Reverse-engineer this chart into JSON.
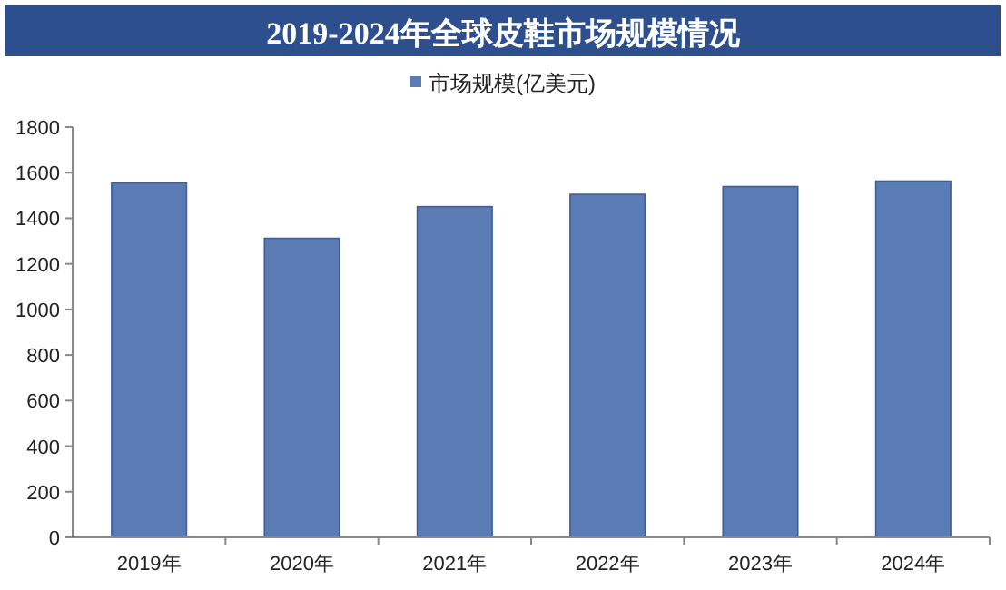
{
  "chart_data": {
    "type": "bar",
    "title": "2019-2024年全球皮鞋市场规模情况",
    "categories": [
      "2019年",
      "2020年",
      "2021年",
      "2022年",
      "2023年",
      "2024年"
    ],
    "series": [
      {
        "name": "市场规模(亿美元)",
        "color": "#5b7bb5",
        "values": [
          1555,
          1312,
          1451,
          1505,
          1539,
          1563
        ]
      }
    ],
    "ylim": [
      0,
      1800
    ],
    "yticks": [
      0,
      200,
      400,
      600,
      800,
      1000,
      1200,
      1400,
      1600,
      1800
    ],
    "legend": "top",
    "grid": false
  }
}
